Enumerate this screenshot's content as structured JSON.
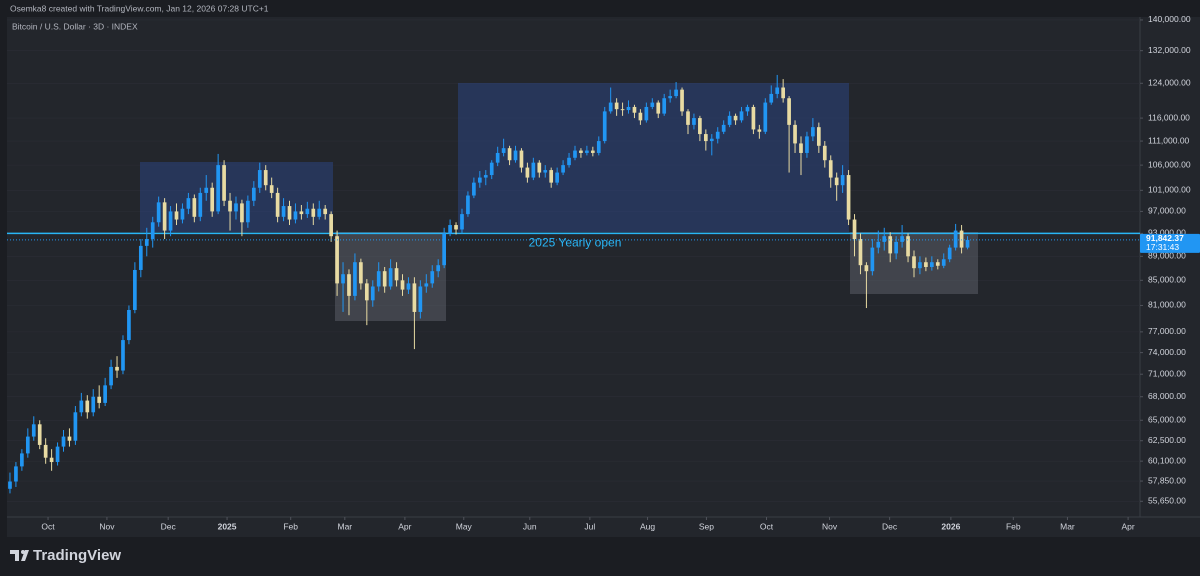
{
  "header": {
    "credit": "Osemka8 created with TradingView.com, Jan 12, 2026 07:28 UTC+1",
    "symbol": "Bitcoin / U.S. Dollar · 3D · INDEX"
  },
  "footer": {
    "brand": "TradingView"
  },
  "chart_data": {
    "type": "candlestick",
    "up_color": "#2196f3",
    "down_color": "#e8dba3",
    "log_scale": true,
    "ylim": [
      54000,
      140800
    ],
    "yticks": [
      {
        "value": 140000,
        "label": "140,000.00"
      },
      {
        "value": 132000,
        "label": "132,000.00"
      },
      {
        "value": 124000,
        "label": "124,000.00"
      },
      {
        "value": 116000,
        "label": "116,000.00"
      },
      {
        "value": 111000,
        "label": "111,000.00"
      },
      {
        "value": 106000,
        "label": "106,000.00"
      },
      {
        "value": 101000,
        "label": "101,000.00"
      },
      {
        "value": 97000,
        "label": "97,000.00"
      },
      {
        "value": 93000,
        "label": "93,000.00"
      },
      {
        "value": 89000,
        "label": "89,000.00"
      },
      {
        "value": 85000,
        "label": "85,000.00"
      },
      {
        "value": 81000,
        "label": "81,000.00"
      },
      {
        "value": 77000,
        "label": "77,000.00"
      },
      {
        "value": 74000,
        "label": "74,000.00"
      },
      {
        "value": 71000,
        "label": "71,000.00"
      },
      {
        "value": 68000,
        "label": "68,000.00"
      },
      {
        "value": 65000,
        "label": "65,000.00"
      },
      {
        "value": 62500,
        "label": "62,500.00"
      },
      {
        "value": 60100,
        "label": "60,100.00"
      },
      {
        "value": 57850,
        "label": "57,850.00"
      },
      {
        "value": 55650,
        "label": "55,650.00"
      }
    ],
    "xlim": [
      -0.5,
      190
    ],
    "xticks": [
      {
        "value": 6.4,
        "label": "Oct"
      },
      {
        "value": 16.3,
        "label": "Nov"
      },
      {
        "value": 26.6,
        "label": "Dec"
      },
      {
        "value": 36.5,
        "label": "2025"
      },
      {
        "value": 47.2,
        "label": "Feb"
      },
      {
        "value": 56.3,
        "label": "Mar"
      },
      {
        "value": 66.4,
        "label": "Apr"
      },
      {
        "value": 76.3,
        "label": "May"
      },
      {
        "value": 87.4,
        "label": "Jun"
      },
      {
        "value": 97.5,
        "label": "Jul"
      },
      {
        "value": 107.2,
        "label": "Aug"
      },
      {
        "value": 117.1,
        "label": "Sep"
      },
      {
        "value": 127.2,
        "label": "Oct"
      },
      {
        "value": 137.8,
        "label": "Nov"
      },
      {
        "value": 147.9,
        "label": "Dec"
      },
      {
        "value": 158.2,
        "label": "2026"
      },
      {
        "value": 168.7,
        "label": "Feb"
      },
      {
        "value": 177.8,
        "label": "Mar"
      },
      {
        "value": 188,
        "label": "Apr"
      }
    ],
    "level": {
      "value": 93000,
      "label": "2025 Yearly open",
      "color": "#29b6f6"
    },
    "last_price": {
      "value": 91842.37,
      "label": "91,842.37",
      "countdown": "17:31:43"
    },
    "candles": [
      [
        57000,
        58800,
        56500,
        57800
      ],
      [
        57800,
        60000,
        57200,
        59500
      ],
      [
        59500,
        61500,
        59000,
        61000
      ],
      [
        61000,
        64000,
        60500,
        63000
      ],
      [
        63000,
        65500,
        62500,
        64500
      ],
      [
        64500,
        65000,
        61500,
        62000
      ],
      [
        62000,
        62800,
        59800,
        60500
      ],
      [
        60500,
        61500,
        59000,
        60000
      ],
      [
        60000,
        62300,
        59600,
        61800
      ],
      [
        61800,
        63800,
        61200,
        63000
      ],
      [
        63000,
        64000,
        61800,
        62500
      ],
      [
        62500,
        66800,
        62000,
        66000
      ],
      [
        66000,
        68500,
        65500,
        67500
      ],
      [
        67500,
        68200,
        65200,
        66000
      ],
      [
        66000,
        69000,
        65500,
        68000
      ],
      [
        68000,
        69500,
        66500,
        67200
      ],
      [
        67200,
        70500,
        66800,
        69500
      ],
      [
        69500,
        73000,
        69000,
        72000
      ],
      [
        72000,
        73500,
        70500,
        71500
      ],
      [
        71500,
        76500,
        71000,
        75800
      ],
      [
        75800,
        81000,
        75200,
        80300
      ],
      [
        80300,
        88000,
        79800,
        86700
      ],
      [
        86700,
        92000,
        85500,
        90800
      ],
      [
        90800,
        94000,
        89000,
        92000
      ],
      [
        92000,
        96000,
        90500,
        95000
      ],
      [
        95000,
        99800,
        94200,
        98700
      ],
      [
        98700,
        99500,
        92000,
        93500
      ],
      [
        93500,
        98000,
        92500,
        97000
      ],
      [
        97000,
        98500,
        94500,
        95500
      ],
      [
        95500,
        98500,
        94800,
        97500
      ],
      [
        97500,
        100500,
        96500,
        99500
      ],
      [
        99500,
        100200,
        95000,
        96000
      ],
      [
        96000,
        101500,
        95200,
        100500
      ],
      [
        100500,
        104000,
        99000,
        101500
      ],
      [
        101500,
        102500,
        96000,
        97000
      ],
      [
        97000,
        108300,
        96500,
        106000
      ],
      [
        106000,
        107000,
        98000,
        99000
      ],
      [
        99000,
        100500,
        93500,
        97000
      ],
      [
        97000,
        99800,
        95500,
        98500
      ],
      [
        98500,
        99200,
        92500,
        95000
      ],
      [
        95000,
        100000,
        94000,
        99000
      ],
      [
        99000,
        102800,
        98000,
        101500
      ],
      [
        101500,
        106500,
        100500,
        105000
      ],
      [
        105000,
        106000,
        101000,
        102000
      ],
      [
        102000,
        103500,
        99500,
        100500
      ],
      [
        100500,
        101500,
        95000,
        96000
      ],
      [
        96000,
        99500,
        95200,
        98000
      ],
      [
        98000,
        99000,
        94500,
        95500
      ],
      [
        95500,
        98500,
        94800,
        97000
      ],
      [
        97000,
        98200,
        95500,
        96500
      ],
      [
        96500,
        98800,
        95800,
        97500
      ],
      [
        97500,
        98500,
        94500,
        96000
      ],
      [
        96000,
        99000,
        95500,
        97500
      ],
      [
        97500,
        98200,
        95500,
        96500
      ],
      [
        96500,
        97000,
        91500,
        92500
      ],
      [
        92500,
        93500,
        82500,
        84500
      ],
      [
        84500,
        88000,
        80000,
        86000
      ],
      [
        86000,
        86800,
        79500,
        82500
      ],
      [
        82500,
        89500,
        81800,
        88000
      ],
      [
        88000,
        88600,
        83500,
        84500
      ],
      [
        84500,
        85200,
        78000,
        81800
      ],
      [
        81800,
        85000,
        80800,
        84000
      ],
      [
        84000,
        88000,
        83200,
        86500
      ],
      [
        86500,
        87200,
        83000,
        84000
      ],
      [
        84000,
        88500,
        83500,
        87000
      ],
      [
        87000,
        88000,
        84000,
        85000
      ],
      [
        85000,
        86000,
        82500,
        83500
      ],
      [
        83500,
        85500,
        82800,
        84500
      ],
      [
        84500,
        85500,
        74500,
        80000
      ],
      [
        80000,
        85000,
        79000,
        84000
      ],
      [
        84000,
        86000,
        83000,
        84500
      ],
      [
        84500,
        87500,
        83800,
        86500
      ],
      [
        86500,
        88500,
        85500,
        87500
      ],
      [
        87500,
        94000,
        87000,
        93000
      ],
      [
        93000,
        95500,
        92500,
        94500
      ],
      [
        94500,
        95000,
        92800,
        93700
      ],
      [
        93700,
        97500,
        93000,
        96500
      ],
      [
        96500,
        100800,
        96000,
        100000
      ],
      [
        100000,
        103500,
        99500,
        102500
      ],
      [
        102500,
        104800,
        101500,
        103500
      ],
      [
        103500,
        105000,
        102000,
        104000
      ],
      [
        104000,
        107000,
        103200,
        106500
      ],
      [
        106500,
        109800,
        105800,
        108500
      ],
      [
        108500,
        111500,
        107800,
        109500
      ],
      [
        109500,
        110000,
        106000,
        107000
      ],
      [
        107000,
        110000,
        106500,
        109000
      ],
      [
        109000,
        109500,
        104500,
        105500
      ],
      [
        105500,
        106500,
        102500,
        103500
      ],
      [
        103500,
        107500,
        103000,
        106500
      ],
      [
        106500,
        107000,
        103500,
        104500
      ],
      [
        104500,
        106000,
        103500,
        105000
      ],
      [
        105000,
        105500,
        101500,
        102500
      ],
      [
        102500,
        105500,
        102000,
        104500
      ],
      [
        104500,
        107000,
        104000,
        106000
      ],
      [
        106000,
        108500,
        105500,
        107500
      ],
      [
        107500,
        110000,
        107000,
        109000
      ],
      [
        109000,
        109500,
        107500,
        108500
      ],
      [
        108500,
        110000,
        108000,
        109000
      ],
      [
        109000,
        109800,
        107800,
        108500
      ],
      [
        108500,
        112000,
        108000,
        111000
      ],
      [
        111000,
        118500,
        110500,
        117500
      ],
      [
        117500,
        123000,
        117000,
        119500
      ],
      [
        119500,
        120500,
        116500,
        118000
      ],
      [
        118000,
        119500,
        116500,
        117800
      ],
      [
        117800,
        120000,
        117000,
        118500
      ],
      [
        118500,
        119000,
        116000,
        117200
      ],
      [
        117200,
        118000,
        114500,
        115500
      ],
      [
        115500,
        119500,
        115000,
        118500
      ],
      [
        118500,
        120500,
        118000,
        119500
      ],
      [
        119500,
        120000,
        116000,
        117000
      ],
      [
        117000,
        121500,
        116500,
        120500
      ],
      [
        120500,
        122500,
        119500,
        121000
      ],
      [
        121000,
        124300,
        120500,
        122500
      ],
      [
        122500,
        123000,
        116500,
        117500
      ],
      [
        117500,
        118000,
        112500,
        114500
      ],
      [
        114500,
        117000,
        113500,
        116000
      ],
      [
        116000,
        116500,
        111000,
        112500
      ],
      [
        112500,
        113500,
        109000,
        111000
      ],
      [
        111000,
        112500,
        108000,
        111500
      ],
      [
        111500,
        114000,
        110500,
        113000
      ],
      [
        113000,
        115500,
        112500,
        114500
      ],
      [
        114500,
        117500,
        114000,
        116500
      ],
      [
        116500,
        117000,
        114500,
        115500
      ],
      [
        115500,
        118500,
        115000,
        117500
      ],
      [
        117500,
        119000,
        116500,
        118500
      ],
      [
        118500,
        119000,
        112500,
        113500
      ],
      [
        113500,
        114500,
        111500,
        113000
      ],
      [
        113000,
        120500,
        112500,
        119500
      ],
      [
        119500,
        123500,
        119000,
        121500
      ],
      [
        121500,
        126000,
        120500,
        123000
      ],
      [
        123000,
        125000,
        119500,
        120500
      ],
      [
        120500,
        121000,
        104500,
        114500
      ],
      [
        114500,
        115500,
        108500,
        110500
      ],
      [
        110500,
        112000,
        104000,
        108500
      ],
      [
        108500,
        113000,
        107500,
        112000
      ],
      [
        112000,
        116000,
        111000,
        114000
      ],
      [
        114000,
        115000,
        108500,
        110000
      ],
      [
        110000,
        111000,
        105500,
        107000
      ],
      [
        107000,
        108000,
        101500,
        103500
      ],
      [
        103500,
        104500,
        99000,
        102000
      ],
      [
        102000,
        106000,
        100500,
        104000
      ],
      [
        104000,
        105000,
        94500,
        95500
      ],
      [
        95500,
        96500,
        89000,
        92000
      ],
      [
        92000,
        93000,
        86000,
        87500
      ],
      [
        87500,
        88000,
        80600,
        86500
      ],
      [
        86500,
        92000,
        85800,
        90500
      ],
      [
        90500,
        93500,
        89500,
        91500
      ],
      [
        91500,
        94000,
        90000,
        92500
      ],
      [
        92500,
        93200,
        88000,
        89500
      ],
      [
        89500,
        92500,
        88500,
        91500
      ],
      [
        91500,
        94500,
        90500,
        92500
      ],
      [
        92500,
        93000,
        88000,
        89000
      ],
      [
        89000,
        90000,
        85500,
        87000
      ],
      [
        87000,
        89000,
        86000,
        88000
      ],
      [
        88000,
        88800,
        86500,
        87200
      ],
      [
        87200,
        89000,
        86600,
        88000
      ],
      [
        88000,
        88500,
        86800,
        87400
      ],
      [
        87400,
        89500,
        87000,
        88500
      ],
      [
        88500,
        91000,
        88000,
        90500
      ],
      [
        90500,
        94700,
        90000,
        93500
      ],
      [
        93500,
        94500,
        89500,
        90500
      ],
      [
        90500,
        92500,
        90200,
        91842.37
      ]
    ]
  }
}
